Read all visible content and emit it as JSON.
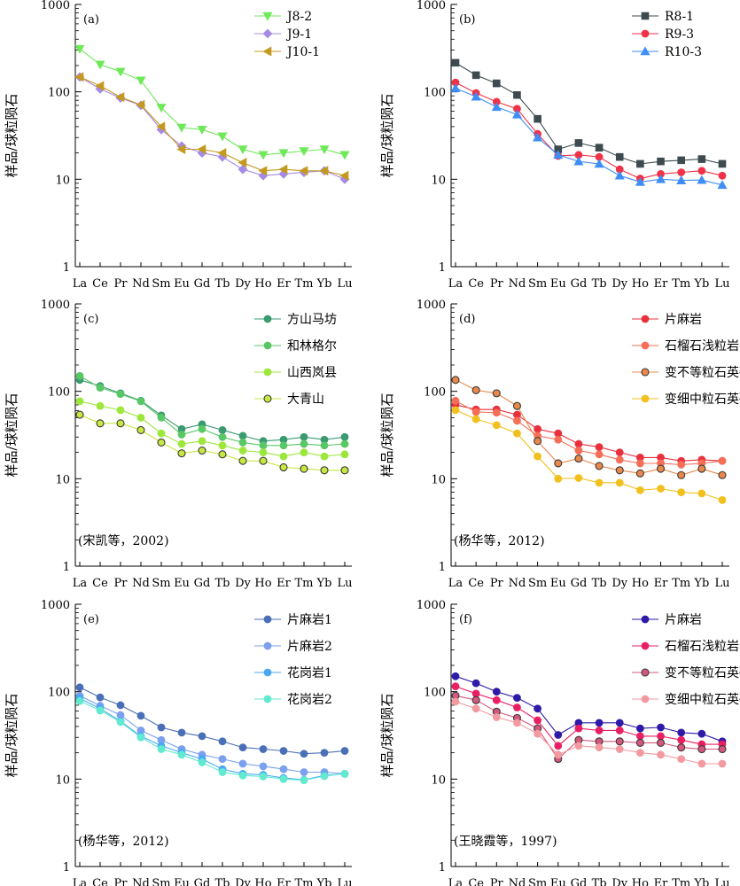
{
  "chart_data": [
    {
      "type": "line",
      "label": "(a)",
      "ylabel": "样品/球粒陨石",
      "yscale": "log",
      "ylim": [
        1,
        1000
      ],
      "ytick_labels": [
        "1",
        "10",
        "100",
        "1000"
      ],
      "categories": [
        "La",
        "Ce",
        "Pr",
        "Nd",
        "Sm",
        "Eu",
        "Gd",
        "Tb",
        "Dy",
        "Ho",
        "Er",
        "Tm",
        "Yb",
        "Lu"
      ],
      "legend_position": "top-right",
      "note": "",
      "series": [
        {
          "name": "J8-2",
          "color": "#6fe85a",
          "marker": "triangle-down",
          "values": [
            310,
            205,
            170,
            135,
            66,
            39,
            37,
            31,
            22,
            19,
            20,
            21,
            22,
            19
          ]
        },
        {
          "name": "J9-1",
          "color": "#a58be6",
          "marker": "diamond",
          "values": [
            148,
            108,
            85,
            70,
            37,
            24,
            20,
            18,
            13,
            11,
            11.5,
            12,
            12.5,
            10
          ]
        },
        {
          "name": "J10-1",
          "color": "#c49a1e",
          "marker": "triangle-left",
          "values": [
            148,
            117,
            87,
            71,
            40,
            22,
            22,
            20,
            15.5,
            12.5,
            13,
            12.5,
            12.5,
            11
          ]
        }
      ]
    },
    {
      "type": "line",
      "label": "(b)",
      "ylabel": "样品/球粒陨石",
      "yscale": "log",
      "ylim": [
        1,
        1000
      ],
      "ytick_labels": [
        "1",
        "10",
        "100",
        "1000"
      ],
      "categories": [
        "La",
        "Ce",
        "Pr",
        "Nd",
        "Sm",
        "Eu",
        "Gd",
        "Tb",
        "Dy",
        "Ho",
        "Er",
        "Tm",
        "Yb",
        "Lu"
      ],
      "legend_position": "top-right",
      "note": "",
      "series": [
        {
          "name": "R8-1",
          "color": "#3d4a4f",
          "marker": "square",
          "values": [
            215,
            155,
            125,
            92,
            49,
            22,
            26,
            23,
            18,
            15,
            16,
            16.5,
            17,
            15
          ]
        },
        {
          "name": "R9-3",
          "color": "#ef3248",
          "marker": "circle",
          "values": [
            128,
            97,
            77,
            64,
            33,
            18.5,
            19,
            18,
            13,
            10.2,
            11.5,
            12,
            12.5,
            11
          ]
        },
        {
          "name": "R10-3",
          "color": "#3e8ef7",
          "marker": "triangle-up",
          "values": [
            110,
            88,
            67,
            55,
            30,
            19,
            16,
            15,
            11,
            9.3,
            10,
            9.7,
            9.8,
            8.6
          ]
        }
      ]
    },
    {
      "type": "line",
      "label": "(c)",
      "ylabel": "样品/球粒陨石",
      "yscale": "log",
      "ylim": [
        1,
        1000
      ],
      "ytick_labels": [
        "1",
        "10",
        "100",
        "1000"
      ],
      "categories": [
        "La",
        "Ce",
        "Pr",
        "Nd",
        "Sm",
        "Eu",
        "Gd",
        "Tb",
        "Dy",
        "Ho",
        "Er",
        "Tm",
        "Yb",
        "Lu"
      ],
      "legend_position": "top-right",
      "note": "(宋凯等，2002)",
      "series": [
        {
          "name": "方山马坊",
          "color": "#3a9a70",
          "marker": "circle",
          "values": [
            135,
            115,
            95,
            78,
            53,
            37,
            42,
            36,
            31,
            27,
            28,
            30,
            28,
            30
          ]
        },
        {
          "name": "和林格尔",
          "color": "#58c766",
          "marker": "circle",
          "values": [
            150,
            110,
            93,
            77,
            50,
            32,
            37,
            30,
            26,
            24,
            24,
            25,
            24,
            25
          ]
        },
        {
          "name": "山西岚县",
          "color": "#9de63c",
          "marker": "circle",
          "values": [
            77,
            68,
            61,
            50,
            33,
            25,
            27,
            24,
            21,
            20,
            18,
            20,
            18,
            19
          ]
        },
        {
          "name": "大青山",
          "color": "#c6e840",
          "marker": "circle-outline",
          "values": [
            54,
            43,
            43,
            36,
            26,
            19.5,
            21,
            19,
            16,
            16,
            13.5,
            13,
            12.5,
            12.5
          ]
        }
      ]
    },
    {
      "type": "line",
      "label": "(d)",
      "ylabel": "样品/球粒陨石",
      "yscale": "log",
      "ylim": [
        1,
        1000
      ],
      "ytick_labels": [
        "1",
        "10",
        "100",
        "1000"
      ],
      "categories": [
        "La",
        "Ce",
        "Pr",
        "Nd",
        "Sm",
        "Eu",
        "Gd",
        "Tb",
        "Dy",
        "Ho",
        "Er",
        "Tm",
        "Yb",
        "Lu"
      ],
      "legend_position": "top-right",
      "note": "(杨华等，2012)",
      "series": [
        {
          "name": "片麻岩",
          "color": "#e8313d",
          "marker": "circle",
          "values": [
            70,
            62,
            62,
            54,
            37,
            33,
            25,
            23,
            20,
            17.5,
            17.5,
            16,
            16.5,
            16
          ]
        },
        {
          "name": "石榴石浅粒岩",
          "color": "#f46e58",
          "marker": "circle",
          "values": [
            78,
            58,
            57,
            46,
            31,
            28,
            21,
            19,
            16.5,
            15,
            15,
            14.5,
            15,
            16
          ]
        },
        {
          "name": "变不等粒石英砂岩",
          "color": "#e8884a",
          "marker": "circle-outline",
          "values": [
            135,
            103,
            95,
            68,
            27,
            15,
            17,
            14,
            12.5,
            11.5,
            13,
            11,
            13,
            11
          ]
        },
        {
          "name": "变细中粒石英砂岩",
          "color": "#f2c01e",
          "marker": "circle",
          "values": [
            61,
            48,
            41,
            33,
            18,
            10,
            10.2,
            9,
            9,
            7.4,
            7.7,
            7,
            6.8,
            5.7
          ]
        }
      ]
    },
    {
      "type": "line",
      "label": "(e)",
      "ylabel": "样品/球粒陨石",
      "yscale": "log",
      "ylim": [
        1,
        1000
      ],
      "ytick_labels": [
        "1",
        "10",
        "100",
        "1000"
      ],
      "categories": [
        "La",
        "Ce",
        "Pr",
        "Nd",
        "Sm",
        "Eu",
        "Gd",
        "Tb",
        "Dy",
        "Ho",
        "Er",
        "Tm",
        "Yb",
        "Lu"
      ],
      "legend_position": "top-right",
      "note": "(杨华等，2012)",
      "series": [
        {
          "name": "片麻岩1",
          "color": "#4a6fb6",
          "marker": "circle",
          "values": [
            112,
            86,
            70,
            53,
            39,
            34,
            31,
            27,
            23,
            22,
            21,
            19.5,
            20,
            21
          ]
        },
        {
          "name": "片麻岩2",
          "color": "#7aa0ee",
          "marker": "circle",
          "values": [
            90,
            69,
            54,
            36,
            28,
            22,
            19,
            17,
            15,
            14,
            13,
            12,
            12,
            11.5
          ]
        },
        {
          "name": "花岗岩1",
          "color": "#4aa8f2",
          "marker": "circle",
          "values": [
            84,
            64,
            46,
            31,
            24,
            20,
            17,
            13,
            11.5,
            11.2,
            10.3,
            9.8,
            11,
            11.5
          ]
        },
        {
          "name": "花岗岩2",
          "color": "#62ead0",
          "marker": "circle",
          "values": [
            78,
            61,
            45,
            30,
            22,
            19,
            15.5,
            12,
            11,
            10.7,
            10,
            9.7,
            10.8,
            11.5
          ]
        }
      ]
    },
    {
      "type": "line",
      "label": "(f)",
      "ylabel": "样品/球粒陨石",
      "yscale": "log",
      "ylim": [
        1,
        1000
      ],
      "ytick_labels": [
        "1",
        "10",
        "100",
        "1000"
      ],
      "categories": [
        "La",
        "Ce",
        "Pr",
        "Nd",
        "Sm",
        "Eu",
        "Gd",
        "Tb",
        "Dy",
        "Ho",
        "Er",
        "Tm",
        "Yb",
        "Lu"
      ],
      "legend_position": "top-right",
      "note": "(王晓霞等，1997)",
      "series": [
        {
          "name": "片麻岩",
          "color": "#2e1aa8",
          "marker": "circle",
          "values": [
            150,
            125,
            100,
            85,
            64,
            32,
            44,
            44,
            44,
            38,
            39,
            34,
            33,
            27
          ]
        },
        {
          "name": "石榴石浅粒岩",
          "color": "#e81f63",
          "marker": "circle",
          "values": [
            115,
            95,
            80,
            66,
            47,
            24,
            38,
            36,
            36,
            31,
            31,
            28,
            25,
            25
          ]
        },
        {
          "name": "变不等粒石英砂岩",
          "color": "#d4577c",
          "marker": "circle-outline",
          "values": [
            90,
            80,
            59,
            50,
            38,
            17,
            28,
            27,
            27,
            26,
            26,
            23,
            22,
            22
          ]
        },
        {
          "name": "变细中粒石英砂岩",
          "color": "#f29aa0",
          "marker": "circle",
          "values": [
            77,
            64,
            51,
            44,
            33,
            19,
            24,
            23,
            22,
            20,
            19,
            17,
            15,
            15
          ]
        }
      ]
    }
  ]
}
